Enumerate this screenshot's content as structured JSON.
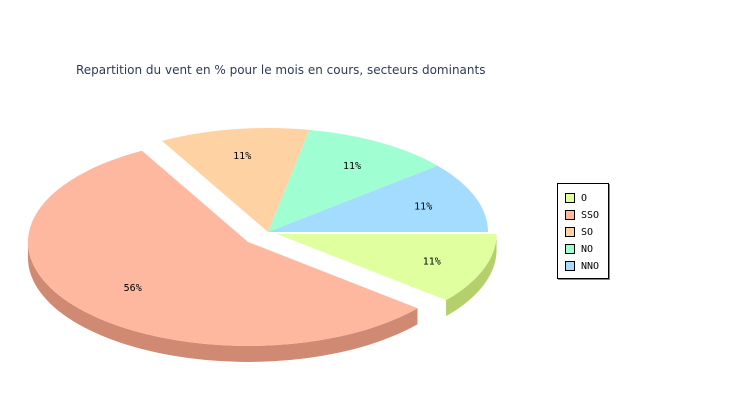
{
  "chart_data": {
    "type": "pie",
    "title": "Repartition du vent en % pour le mois en cours, secteurs dominants",
    "categories": [
      "O",
      "SSO",
      "SO",
      "NO",
      "NNO"
    ],
    "values": [
      11,
      56,
      11,
      11,
      11
    ],
    "value_labels": [
      "11%",
      "56%",
      "11%",
      "11%",
      "11%"
    ],
    "colors": [
      "#e0ff9f",
      "#ffb8a0",
      "#ffd2a4",
      "#a0ffd2",
      "#a4dcff"
    ],
    "side_colors": [
      "#b4d06c",
      "#d08a74",
      "#d0a874",
      "#74d0a8",
      "#74a8d0"
    ],
    "exploded": [
      "SSO",
      "O"
    ],
    "three_d": true,
    "legend_position": "right"
  }
}
